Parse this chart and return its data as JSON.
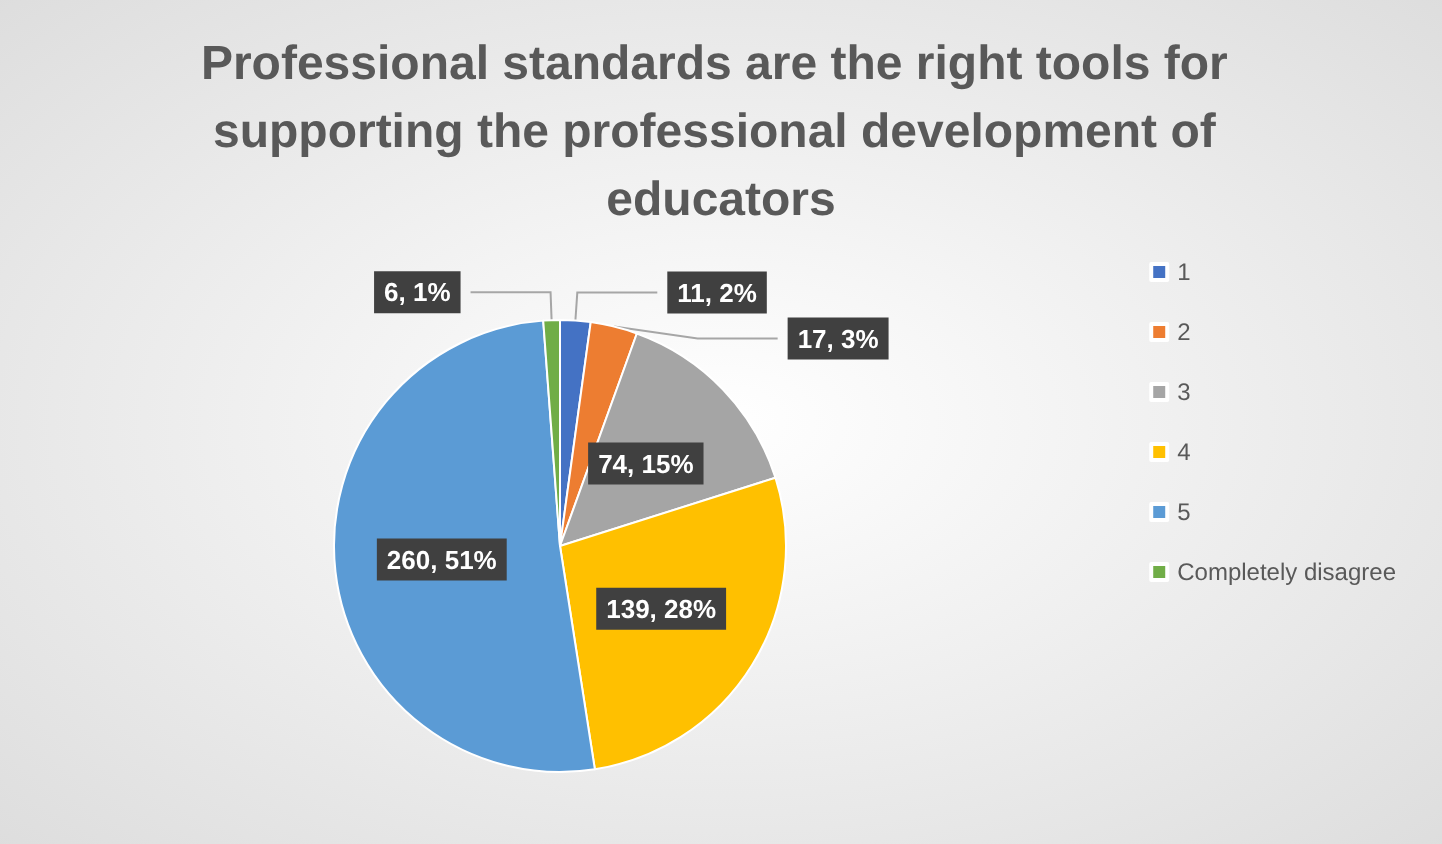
{
  "chart_data": {
    "type": "pie",
    "title": "Professional standards are the right tools for supporting the professional development of educators",
    "categories": [
      "1",
      "2",
      "3",
      "4",
      "5",
      "Completely disagree"
    ],
    "values": [
      11,
      17,
      74,
      139,
      260,
      6
    ],
    "colors": [
      "#4472c4",
      "#ed7d31",
      "#a5a5a5",
      "#ffc000",
      "#5b9bd5",
      "#70ad47"
    ],
    "value_labels": [
      "11, 2%",
      "17, 3%",
      "74, 15%",
      "139, 28%",
      "260, 51%",
      "6, 1%"
    ],
    "legend": "right"
  }
}
